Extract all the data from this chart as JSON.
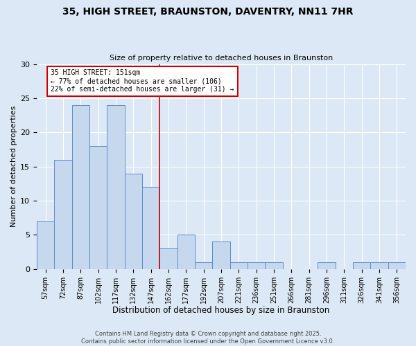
{
  "title_line1": "35, HIGH STREET, BRAUNSTON, DAVENTRY, NN11 7HR",
  "title_line2": "Size of property relative to detached houses in Braunston",
  "xlabel": "Distribution of detached houses by size in Braunston",
  "ylabel": "Number of detached properties",
  "footnote1": "Contains HM Land Registry data © Crown copyright and database right 2025.",
  "footnote2": "Contains public sector information licensed under the Open Government Licence v3.0.",
  "categories": [
    "57sqm",
    "72sqm",
    "87sqm",
    "102sqm",
    "117sqm",
    "132sqm",
    "147sqm",
    "162sqm",
    "177sqm",
    "192sqm",
    "207sqm",
    "221sqm",
    "236sqm",
    "251sqm",
    "266sqm",
    "281sqm",
    "296sqm",
    "311sqm",
    "326sqm",
    "341sqm",
    "356sqm"
  ],
  "values": [
    7,
    16,
    24,
    18,
    24,
    14,
    12,
    3,
    5,
    1,
    4,
    1,
    1,
    1,
    0,
    0,
    1,
    0,
    1,
    1,
    1
  ],
  "bar_color": "#c5d8ee",
  "bar_edge_color": "#5b8cc8",
  "annotation_box_color": "#ffffff",
  "annotation_box_edge_color": "#cc0000",
  "vline_color": "#cc0000",
  "vline_x": 6.5,
  "annotation_text_line1": "35 HIGH STREET: 151sqm",
  "annotation_text_line2": "← 77% of detached houses are smaller (106)",
  "annotation_text_line3": "22% of semi-detached houses are larger (31) →",
  "ylim": [
    0,
    30
  ],
  "yticks": [
    0,
    5,
    10,
    15,
    20,
    25,
    30
  ],
  "background_color": "#dce8f5",
  "grid_color": "#ffffff",
  "fig_width": 6.0,
  "fig_height": 5.0,
  "dpi": 100
}
